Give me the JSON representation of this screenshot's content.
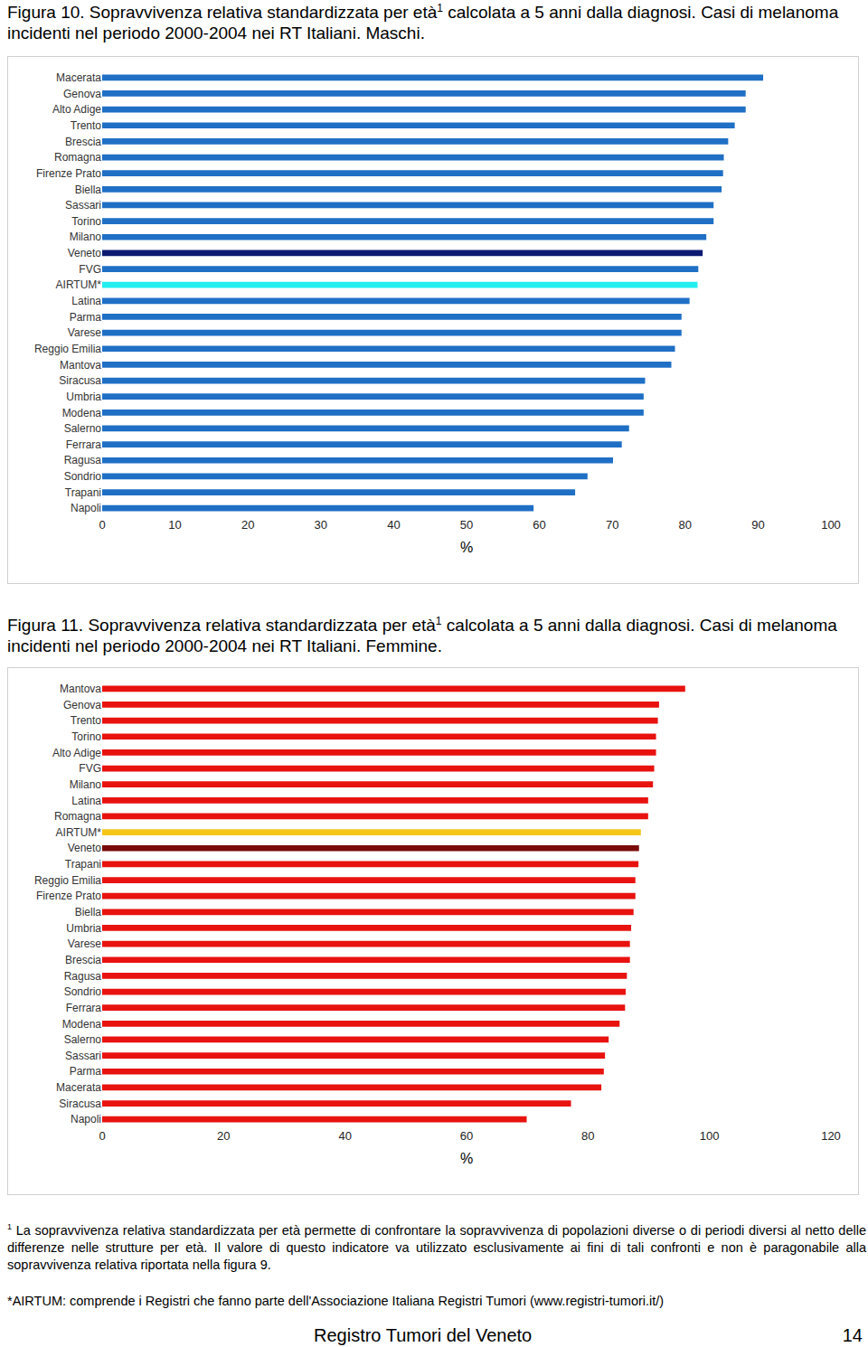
{
  "captions": [
    {
      "before": "Figura 10. Sopravvivenza relativa standardizzata per età",
      "sup": "1",
      "after": " calcolata a 5 anni dalla diagnosi. Casi di melanoma incidenti nel periodo 2000-2004 nei RT Italiani. Maschi."
    },
    {
      "before": "Figura 11. Sopravvivenza relativa standardizzata per età",
      "sup": "1",
      "after": " calcolata a 5 anni dalla diagnosi. Casi di melanoma incidenti nel periodo 2000-2004 nei RT Italiani. Femmine."
    }
  ],
  "chart_data": [
    {
      "type": "bar",
      "orientation": "horizontal",
      "x_label": "%",
      "grid": false,
      "categories": [
        "Macerata",
        "Genova",
        "Alto Adige",
        "Trento",
        "Brescia",
        "Romagna",
        "Firenze Prato",
        "Biella",
        "Sassari",
        "Torino",
        "Milano",
        "Veneto",
        "FVG",
        "AIRTUM*",
        "Latina",
        "Parma",
        "Varese",
        "Reggio Emilia",
        "Mantova",
        "Siracusa",
        "Umbria",
        "Modena",
        "Salerno",
        "Ferrara",
        "Ragusa",
        "Sondrio",
        "Trapani",
        "Napoli"
      ],
      "values": [
        90.7,
        88.3,
        88.3,
        86.8,
        85.9,
        85.3,
        85.2,
        85.0,
        83.9,
        83.9,
        82.9,
        82.4,
        81.8,
        81.7,
        80.6,
        79.5,
        79.5,
        78.6,
        78.1,
        74.5,
        74.3,
        74.3,
        72.3,
        71.3,
        70.1,
        66.6,
        64.9,
        59.2
      ],
      "colors": [
        "#1f6fc5",
        "#1f6fc5",
        "#1f6fc5",
        "#1f6fc5",
        "#1f6fc5",
        "#1f6fc5",
        "#1f6fc5",
        "#1f6fc5",
        "#1f6fc5",
        "#1f6fc5",
        "#1f6fc5",
        "#0b1a70",
        "#1f6fc5",
        "#22eef0",
        "#1f6fc5",
        "#1f6fc5",
        "#1f6fc5",
        "#1f6fc5",
        "#1f6fc5",
        "#1f6fc5",
        "#1f6fc5",
        "#1f6fc5",
        "#1f6fc5",
        "#1f6fc5",
        "#1f6fc5",
        "#1f6fc5",
        "#1f6fc5",
        "#1f6fc5"
      ],
      "xlim": [
        0,
        100
      ],
      "xticks": [
        0,
        10,
        20,
        30,
        40,
        50,
        60,
        70,
        80,
        90,
        100
      ]
    },
    {
      "type": "bar",
      "orientation": "horizontal",
      "x_label": "%",
      "grid": false,
      "categories": [
        "Mantova",
        "Genova",
        "Trento",
        "Torino",
        "Alto Adige",
        "FVG",
        "Milano",
        "Latina",
        "Romagna",
        "AIRTUM*",
        "Veneto",
        "Trapani",
        "Reggio Emilia",
        "Firenze Prato",
        "Biella",
        "Umbria",
        "Varese",
        "Brescia",
        "Ragusa",
        "Sondrio",
        "Ferrara",
        "Modena",
        "Salerno",
        "Sassari",
        "Parma",
        "Macerata",
        "Siracusa",
        "Napoli"
      ],
      "values": [
        96.0,
        91.7,
        91.5,
        91.2,
        91.2,
        90.9,
        90.7,
        89.9,
        89.9,
        88.7,
        88.4,
        88.3,
        87.8,
        87.8,
        87.5,
        87.1,
        86.9,
        86.9,
        86.4,
        86.2,
        86.1,
        85.2,
        83.4,
        82.8,
        82.6,
        82.2,
        77.2,
        69.9
      ],
      "colors": [
        "#e8120f",
        "#e8120f",
        "#e8120f",
        "#e8120f",
        "#e8120f",
        "#e8120f",
        "#e8120f",
        "#e8120f",
        "#e8120f",
        "#f5c518",
        "#7a0a0a",
        "#e8120f",
        "#e8120f",
        "#e8120f",
        "#e8120f",
        "#e8120f",
        "#e8120f",
        "#e8120f",
        "#e8120f",
        "#e8120f",
        "#e8120f",
        "#e8120f",
        "#e8120f",
        "#e8120f",
        "#e8120f",
        "#e8120f",
        "#e8120f",
        "#e8120f"
      ],
      "xlim": [
        0,
        120
      ],
      "xticks": [
        0,
        20,
        40,
        60,
        80,
        100,
        120
      ]
    }
  ],
  "footnotes": [
    {
      "sup": "1",
      "text": " La sopravvivenza relativa standardizzata per età permette di confrontare la sopravvivenza di popolazioni diverse o di periodi diversi al netto delle differenze nelle strutture per età. Il valore di questo indicatore va utilizzato esclusivamente ai fini di tali confronti e non è paragonabile alla sopravvivenza relativa riportata nella figura 9."
    },
    {
      "sup": "",
      "text": "*AIRTUM: comprende i Registri che fanno parte dell'Associazione Italiana Registri Tumori (www.registri-tumori.it/)"
    }
  ],
  "footer": {
    "text": "Registro Tumori del Veneto",
    "page": "14"
  }
}
